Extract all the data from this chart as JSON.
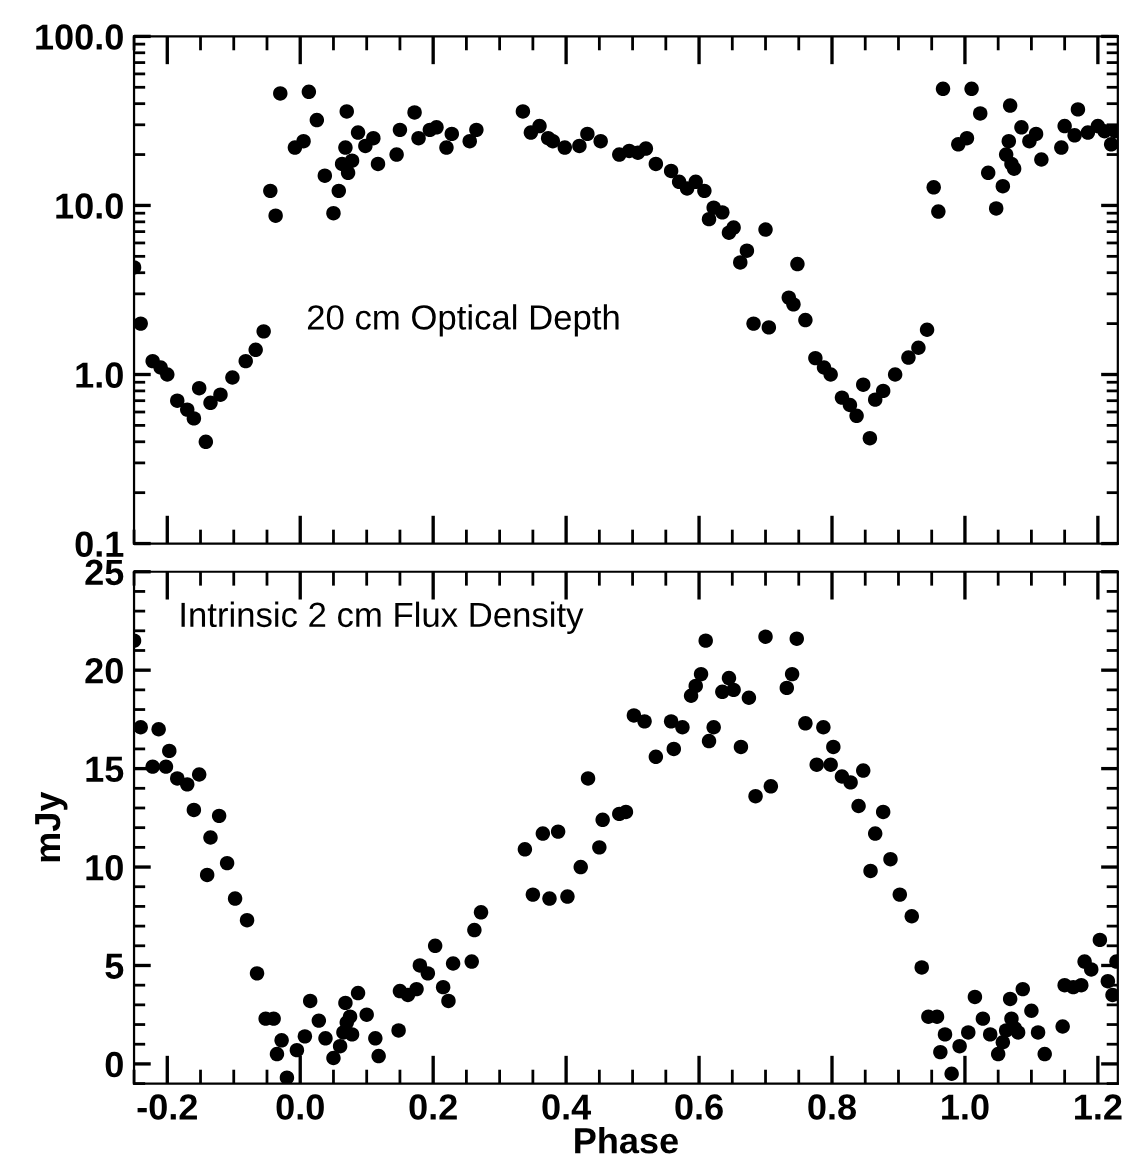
{
  "chart_data": [
    {
      "type": "scatter",
      "annotations": [
        "20 cm Optical Depth"
      ],
      "log": "y",
      "xlim": [
        -0.25,
        1.23
      ],
      "ylim": [
        0.1,
        100
      ],
      "xticks": [
        {
          "value": -0.2,
          "label": null
        },
        {
          "value": 0.0,
          "label": null
        },
        {
          "value": 0.2,
          "label": null
        },
        {
          "value": 0.4,
          "label": null
        },
        {
          "value": 0.6,
          "label": null
        },
        {
          "value": 0.8,
          "label": null
        },
        {
          "value": 1.0,
          "label": null
        },
        {
          "value": 1.2,
          "label": null
        }
      ],
      "yticks": [
        {
          "value": 0.1,
          "label": "0.1"
        },
        {
          "value": 1,
          "label": "1.0"
        },
        {
          "value": 10,
          "label": "10.0"
        },
        {
          "value": 100,
          "label": "100.0"
        }
      ],
      "tick_labels": "y",
      "grid": false,
      "marker": "circle",
      "series": [
        {
          "color": "#000000",
          "x": [
            -0.25,
            -0.24,
            -0.222,
            -0.21,
            -0.2,
            -0.185,
            -0.17,
            -0.16,
            -0.152,
            -0.142,
            -0.135,
            -0.12,
            -0.102,
            -0.082,
            -0.067,
            -0.055,
            -0.045,
            -0.037,
            -0.03,
            -0.008,
            0.005,
            0.013,
            0.025,
            0.037,
            0.05,
            0.058,
            0.063,
            0.068,
            0.07,
            0.072,
            0.078,
            0.087,
            0.098,
            0.11,
            0.117,
            0.145,
            0.15,
            0.172,
            0.178,
            0.195,
            0.205,
            0.22,
            0.228,
            0.255,
            0.265,
            0.335,
            0.347,
            0.36,
            0.373,
            0.38,
            0.398,
            0.42,
            0.432,
            0.452,
            0.48,
            0.495,
            0.508,
            0.52,
            0.535,
            0.558,
            0.57,
            0.582,
            0.595,
            0.608,
            0.615,
            0.622,
            0.635,
            0.645,
            0.652,
            0.662,
            0.672,
            0.682,
            0.7,
            0.705,
            0.735,
            0.742,
            0.748,
            0.76,
            0.775,
            0.788,
            0.798,
            0.815,
            0.827,
            0.837,
            0.847,
            0.857,
            0.865,
            0.877,
            0.895,
            0.915,
            0.93,
            0.943,
            0.953,
            0.96,
            0.967,
            0.99,
            1.003,
            1.01,
            1.023,
            1.035,
            1.047,
            1.057,
            1.062,
            1.066,
            1.068,
            1.07,
            1.074,
            1.085,
            1.097,
            1.107,
            1.115,
            1.145,
            1.15,
            1.165,
            1.17,
            1.185,
            1.2,
            1.21,
            1.22,
            1.226
          ],
          "values": [
            4.3,
            2.0,
            1.2,
            1.1,
            1.0,
            0.7,
            0.62,
            0.55,
            0.83,
            0.4,
            0.68,
            0.76,
            0.96,
            1.2,
            1.4,
            1.8,
            12.2,
            8.7,
            46,
            22,
            24,
            47,
            32,
            15,
            9.0,
            12.2,
            17.6,
            22,
            36,
            15.6,
            18.4,
            27,
            22.5,
            25,
            17.6,
            20,
            28,
            35.5,
            25,
            28,
            29,
            22,
            26.5,
            24,
            28,
            36,
            27,
            29.5,
            25,
            24,
            22,
            22.5,
            26.5,
            24,
            20,
            21,
            20.5,
            21.7,
            17.6,
            16,
            13.8,
            12.6,
            13.8,
            12.2,
            8.3,
            9.7,
            9.1,
            6.9,
            7.4,
            4.6,
            5.4,
            2.0,
            7.2,
            1.9,
            2.85,
            2.6,
            4.5,
            2.1,
            1.25,
            1.1,
            1.0,
            0.73,
            0.66,
            0.57,
            0.87,
            0.42,
            0.71,
            0.8,
            1.0,
            1.26,
            1.44,
            1.84,
            12.8,
            9.2,
            49,
            23,
            25,
            49,
            35,
            15.6,
            9.6,
            13,
            20,
            24,
            39,
            17.6,
            16.5,
            29,
            24,
            26.5,
            18.7,
            22,
            29.5,
            26,
            37,
            27,
            29.5,
            27.5,
            23,
            27.5
          ]
        }
      ]
    },
    {
      "type": "scatter",
      "annotations": [
        "Intrinsic 2 cm Flux Density"
      ],
      "xlabel": "Phase",
      "ylabel": "mJy",
      "xlim": [
        -0.25,
        1.23
      ],
      "ylim": [
        -1,
        25
      ],
      "xticks": [
        {
          "value": -0.2,
          "label": "-0.2"
        },
        {
          "value": 0.0,
          "label": "0.0"
        },
        {
          "value": 0.2,
          "label": "0.2"
        },
        {
          "value": 0.4,
          "label": "0.4"
        },
        {
          "value": 0.6,
          "label": "0.6"
        },
        {
          "value": 0.8,
          "label": "0.8"
        },
        {
          "value": 1.0,
          "label": "1.0"
        },
        {
          "value": 1.2,
          "label": "1.2"
        }
      ],
      "yticks": [
        0,
        5,
        10,
        15,
        20,
        25
      ],
      "grid": false,
      "marker": "circle",
      "series": [
        {
          "color": "#000000",
          "x": [
            -0.25,
            -0.24,
            -0.222,
            -0.213,
            -0.202,
            -0.197,
            -0.185,
            -0.17,
            -0.152,
            -0.16,
            -0.14,
            -0.135,
            -0.122,
            -0.11,
            -0.098,
            -0.08,
            -0.065,
            -0.052,
            -0.04,
            -0.035,
            -0.028,
            -0.02,
            -0.005,
            0.007,
            0.015,
            0.028,
            0.038,
            0.05,
            0.06,
            0.065,
            0.068,
            0.07,
            0.075,
            0.078,
            0.087,
            0.1,
            0.113,
            0.118,
            0.148,
            0.15,
            0.162,
            0.175,
            0.18,
            0.192,
            0.203,
            0.215,
            0.223,
            0.23,
            0.258,
            0.262,
            0.272,
            0.338,
            0.35,
            0.365,
            0.375,
            0.388,
            0.402,
            0.422,
            0.433,
            0.45,
            0.455,
            0.48,
            0.49,
            0.502,
            0.518,
            0.535,
            0.558,
            0.562,
            0.575,
            0.588,
            0.595,
            0.603,
            0.61,
            0.615,
            0.622,
            0.635,
            0.645,
            0.652,
            0.663,
            0.675,
            0.685,
            0.7,
            0.708,
            0.732,
            0.74,
            0.747,
            0.76,
            0.777,
            0.787,
            0.798,
            0.802,
            0.815,
            0.828,
            0.84,
            0.847,
            0.858,
            0.865,
            0.877,
            0.888,
            0.902,
            0.92,
            0.935,
            0.945,
            0.958,
            0.963,
            0.97,
            0.98,
            0.992,
            1.005,
            1.015,
            1.027,
            1.038,
            1.05,
            1.057,
            1.062,
            1.068,
            1.07,
            1.075,
            1.08,
            1.087,
            1.1,
            1.11,
            1.12,
            1.147,
            1.15,
            1.163,
            1.175,
            1.18,
            1.19,
            1.203,
            1.215,
            1.222,
            1.228
          ],
          "values": [
            21.5,
            17.1,
            15.1,
            17.0,
            15.1,
            15.9,
            14.5,
            14.2,
            14.7,
            12.9,
            9.6,
            11.5,
            12.6,
            10.2,
            8.4,
            7.3,
            4.6,
            2.3,
            2.3,
            0.5,
            1.2,
            -0.7,
            0.7,
            1.4,
            3.2,
            2.2,
            1.3,
            0.3,
            0.9,
            1.6,
            3.1,
            2.1,
            2.4,
            1.5,
            3.6,
            2.5,
            1.3,
            0.4,
            1.7,
            3.7,
            3.5,
            3.8,
            5.0,
            4.6,
            6.0,
            3.9,
            3.2,
            5.1,
            5.2,
            6.8,
            7.7,
            10.9,
            8.6,
            11.7,
            8.4,
            11.8,
            8.5,
            10.0,
            14.5,
            11.0,
            12.4,
            12.7,
            12.8,
            17.7,
            17.4,
            15.6,
            17.4,
            16.0,
            17.1,
            18.7,
            19.2,
            19.8,
            21.5,
            16.4,
            17.1,
            18.9,
            19.6,
            19.0,
            16.1,
            18.6,
            13.6,
            21.7,
            14.1,
            19.1,
            19.8,
            21.6,
            17.3,
            15.2,
            17.1,
            15.2,
            16.1,
            14.6,
            14.3,
            13.1,
            14.9,
            9.8,
            11.7,
            12.8,
            10.4,
            8.6,
            7.5,
            4.9,
            2.4,
            2.4,
            0.6,
            1.5,
            -0.5,
            0.9,
            1.6,
            3.4,
            2.3,
            1.5,
            0.5,
            1.1,
            1.7,
            3.3,
            2.3,
            1.8,
            1.6,
            3.8,
            2.7,
            1.6,
            0.5,
            1.9,
            4.0,
            3.9,
            4.0,
            5.2,
            4.8,
            6.3,
            4.2,
            3.5,
            5.2
          ]
        }
      ]
    }
  ]
}
